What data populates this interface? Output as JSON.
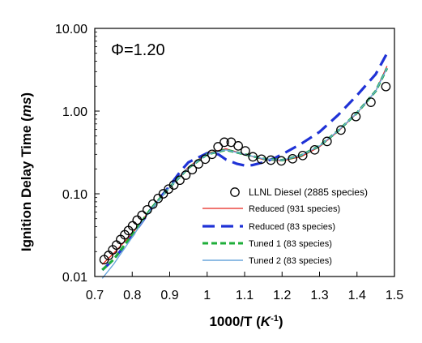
{
  "chart_data": {
    "type": "line",
    "annotation": "Φ=1.20",
    "ylabel": "Ignition Delay Time (ms)",
    "xlabel": "1000/T (K-1)",
    "xlim": [
      0.7,
      1.5
    ],
    "ylim": [
      0.01,
      10
    ],
    "y_scale": "log",
    "grid": false,
    "legend_position": "bottom-right",
    "x_ticks": [
      0.7,
      0.8,
      0.9,
      1.0,
      1.1,
      1.2,
      1.3,
      1.4,
      1.5
    ],
    "x_tick_labels": [
      "0.7",
      "0.8",
      "0.9",
      "1",
      "1.1",
      "1.2",
      "1.3",
      "1.4",
      "1.5"
    ],
    "y_ticks": [
      0.01,
      0.1,
      1,
      10
    ],
    "y_tick_labels": [
      "0.01",
      "0.10",
      "1.00",
      "10.00"
    ],
    "series": [
      {
        "name": "LLNL Diesel (2885 species)",
        "style": "markers",
        "color": "#000000",
        "x": [
          0.725,
          0.737,
          0.748,
          0.758,
          0.769,
          0.78,
          0.79,
          0.801,
          0.813,
          0.826,
          0.84,
          0.855,
          0.869,
          0.883,
          0.897,
          0.911,
          0.927,
          0.943,
          0.96,
          0.977,
          0.995,
          1.013,
          1.029,
          1.046,
          1.064,
          1.083,
          1.102,
          1.122,
          1.145,
          1.17,
          1.198,
          1.228,
          1.255,
          1.287,
          1.32,
          1.357,
          1.397,
          1.437,
          1.477
        ],
        "y": [
          0.016,
          0.018,
          0.021,
          0.024,
          0.028,
          0.032,
          0.036,
          0.041,
          0.048,
          0.055,
          0.064,
          0.075,
          0.088,
          0.1,
          0.114,
          0.128,
          0.146,
          0.168,
          0.196,
          0.23,
          0.262,
          0.3,
          0.37,
          0.42,
          0.42,
          0.38,
          0.33,
          0.28,
          0.262,
          0.255,
          0.25,
          0.265,
          0.29,
          0.34,
          0.43,
          0.59,
          0.86,
          1.28,
          1.98
        ]
      },
      {
        "name": "Reduced (931 species)",
        "style": "line",
        "color": "#e8241c",
        "x": [
          0.72,
          0.75,
          0.8,
          0.85,
          0.9,
          0.95,
          1.0,
          1.05,
          1.1,
          1.15,
          1.2,
          1.25,
          1.3,
          1.35,
          1.4,
          1.45,
          1.48
        ],
        "y": [
          0.014,
          0.019,
          0.033,
          0.066,
          0.12,
          0.21,
          0.31,
          0.35,
          0.3,
          0.26,
          0.25,
          0.28,
          0.37,
          0.57,
          0.94,
          1.75,
          3.5
        ]
      },
      {
        "name": "Reduced (83 species)",
        "style": "dash-long",
        "color": "#1f32d6",
        "x": [
          0.72,
          0.75,
          0.8,
          0.85,
          0.9,
          0.93,
          0.95,
          1.0,
          1.03,
          1.05,
          1.08,
          1.1,
          1.12,
          1.15,
          1.18,
          1.2,
          1.25,
          1.3,
          1.35,
          1.4,
          1.45,
          1.48
        ],
        "y": [
          0.012,
          0.016,
          0.031,
          0.065,
          0.125,
          0.19,
          0.24,
          0.31,
          0.3,
          0.26,
          0.23,
          0.22,
          0.222,
          0.24,
          0.27,
          0.3,
          0.4,
          0.56,
          0.9,
          1.55,
          2.8,
          5.0
        ]
      },
      {
        "name": "Tuned 1 (83 species)",
        "style": "dash-short",
        "color": "#1fae3a",
        "x": [
          0.72,
          0.75,
          0.8,
          0.85,
          0.9,
          0.95,
          1.0,
          1.05,
          1.1,
          1.15,
          1.2,
          1.25,
          1.3,
          1.35,
          1.4,
          1.45,
          1.48
        ],
        "y": [
          0.012,
          0.016,
          0.032,
          0.066,
          0.12,
          0.205,
          0.3,
          0.34,
          0.3,
          0.265,
          0.255,
          0.29,
          0.38,
          0.58,
          0.95,
          1.75,
          3.3
        ]
      },
      {
        "name": "Tuned 2 (83 species)",
        "style": "line-thin",
        "color": "#6aa6dc",
        "x": [
          0.72,
          0.75,
          0.8,
          0.85,
          0.9,
          0.95,
          1.0,
          1.05,
          1.1,
          1.15,
          1.2,
          1.25,
          1.3,
          1.35,
          1.4,
          1.45,
          1.48
        ],
        "y": [
          0.0095,
          0.014,
          0.03,
          0.065,
          0.12,
          0.205,
          0.3,
          0.34,
          0.3,
          0.265,
          0.255,
          0.29,
          0.38,
          0.58,
          0.95,
          1.75,
          3.3
        ]
      }
    ]
  }
}
